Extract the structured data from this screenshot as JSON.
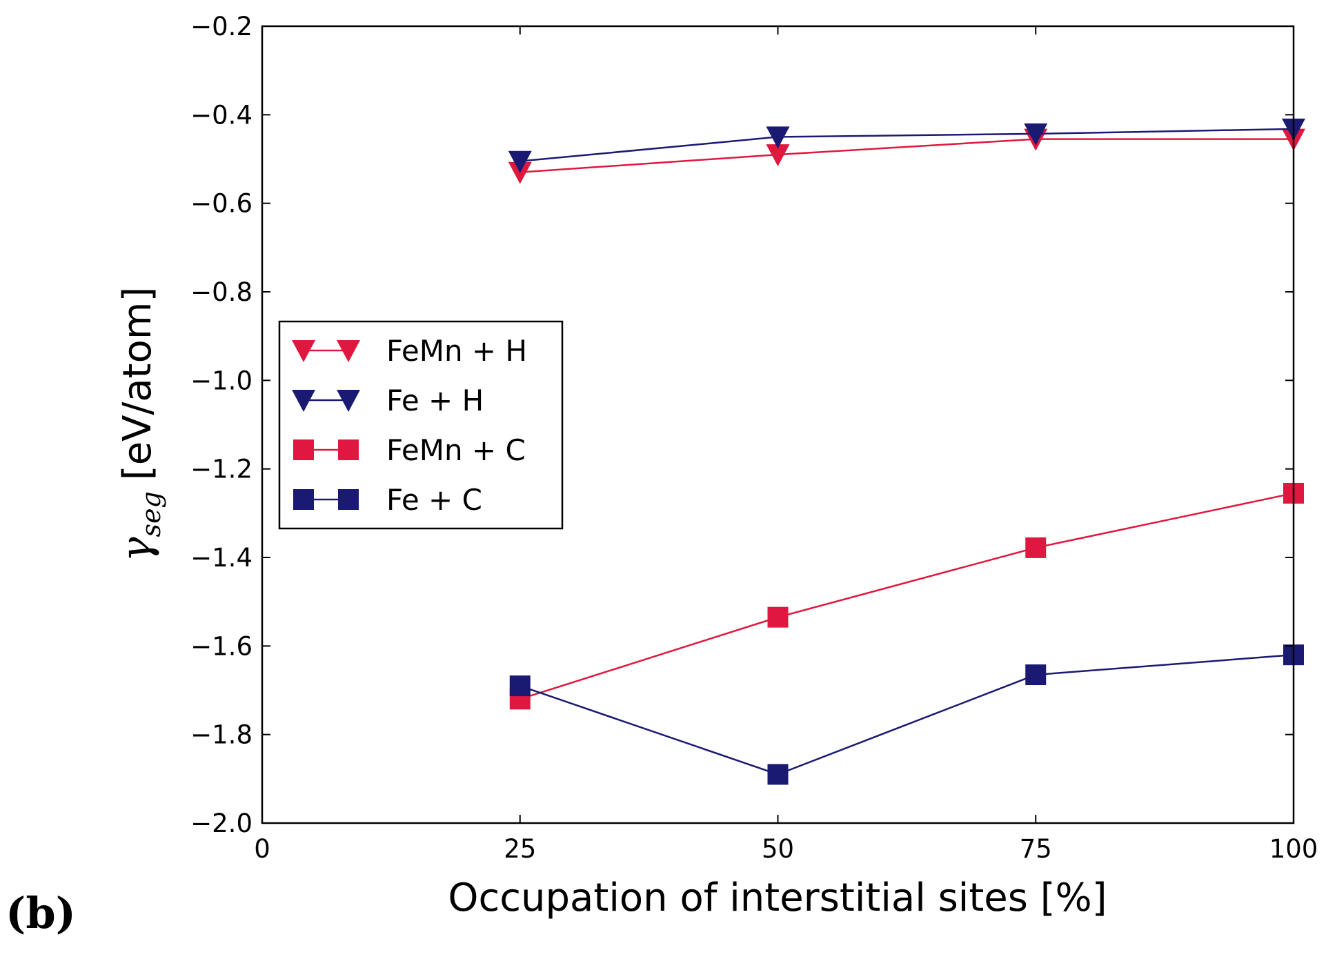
{
  "panel_label": "(b)",
  "colors": {
    "red": "#e0173f",
    "navy": "#1a1a72",
    "axis": "#000000",
    "background": "#ffffff"
  },
  "chart_data": {
    "type": "line",
    "xlabel": "Occupation of interstitial sites [%]",
    "ylabel_symbol": "γ",
    "ylabel_subscript": "seg",
    "ylabel_unit": "[eV/atom]",
    "xlim": [
      0,
      100
    ],
    "ylim": [
      -2.0,
      -0.2
    ],
    "xticks": [
      0,
      25,
      50,
      75,
      100
    ],
    "xtick_labels": [
      "0",
      "25",
      "50",
      "75",
      "100"
    ],
    "yticks": [
      -2.0,
      -1.8,
      -1.6,
      -1.4,
      -1.2,
      -1.0,
      -0.8,
      -0.6,
      -0.4,
      -0.2
    ],
    "ytick_labels": [
      "−2.0",
      "−1.8",
      "−1.6",
      "−1.4",
      "−1.2",
      "−1.0",
      "−0.8",
      "−0.6",
      "−0.4",
      "−0.2"
    ],
    "grid": false,
    "legend_position": "center-left",
    "series": [
      {
        "name": "FeMn + H",
        "marker": "triangle-down",
        "color": "#e0173f",
        "x": [
          25,
          50,
          75,
          100
        ],
        "values": [
          -0.53,
          -0.49,
          -0.455,
          -0.455
        ]
      },
      {
        "name": "Fe + H",
        "marker": "triangle-down",
        "color": "#1a1a72",
        "x": [
          25,
          50,
          75,
          100
        ],
        "values": [
          -0.505,
          -0.45,
          -0.443,
          -0.432
        ]
      },
      {
        "name": "FeMn + C",
        "marker": "square",
        "color": "#e0173f",
        "x": [
          25,
          50,
          75,
          100
        ],
        "values": [
          -1.72,
          -1.535,
          -1.378,
          -1.255
        ]
      },
      {
        "name": "Fe + C",
        "marker": "square",
        "color": "#1a1a72",
        "x": [
          25,
          50,
          75,
          100
        ],
        "values": [
          -1.69,
          -1.89,
          -1.665,
          -1.62
        ]
      }
    ]
  }
}
